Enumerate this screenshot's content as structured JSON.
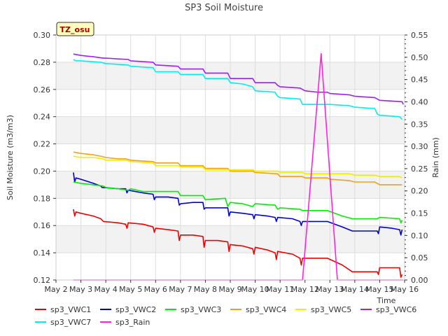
{
  "chart_data": {
    "type": "line",
    "title": "SP3 Soil Moisture",
    "xlabel": "Time",
    "ylabel": "Soil Moisture (m3/m3)",
    "y2label": "Rain (mm)",
    "annotation": "TZ_osu",
    "xlim": [
      2,
      16
    ],
    "ylim": [
      0.12,
      0.3
    ],
    "y2lim": [
      0.0,
      0.55
    ],
    "x_tick_labels": [
      "May 2",
      "May 3",
      "May 4",
      "May 5",
      "May 6",
      "May 7",
      "May 8",
      "May 9",
      "May 10",
      "May 11",
      "May 12",
      "May 13",
      "May 14",
      "May 15",
      "May 16"
    ],
    "x_tick_values": [
      2,
      3,
      4,
      5,
      6,
      7,
      8,
      9,
      10,
      11,
      12,
      13,
      14,
      15,
      16
    ],
    "y_ticks": [
      "0.12",
      "0.14",
      "0.16",
      "0.18",
      "0.20",
      "0.22",
      "0.24",
      "0.26",
      "0.28",
      "0.30"
    ],
    "y_tick_values": [
      0.12,
      0.14,
      0.16,
      0.18,
      0.2,
      0.22,
      0.24,
      0.26,
      0.28,
      0.3
    ],
    "y2_ticks": [
      "0.00",
      "0.05",
      "0.10",
      "0.15",
      "0.20",
      "0.25",
      "0.30",
      "0.35",
      "0.40",
      "0.45",
      "0.50",
      "0.55"
    ],
    "y2_tick_values": [
      0.0,
      0.05,
      0.1,
      0.15,
      0.2,
      0.25,
      0.3,
      0.35,
      0.4,
      0.45,
      0.5,
      0.55
    ],
    "legend_position": "bottom",
    "series": [
      {
        "name": "sp3_VWC1",
        "color": "#ee0000",
        "axis": "left",
        "x": [
          2.7,
          2.75,
          2.8,
          3.0,
          3.5,
          3.8,
          3.85,
          3.9,
          4.5,
          4.8,
          4.85,
          4.9,
          5.5,
          5.9,
          5.95,
          6.0,
          6.5,
          6.9,
          6.95,
          7.0,
          7.5,
          7.9,
          7.95,
          8.0,
          8.5,
          8.9,
          8.95,
          9.0,
          9.5,
          9.9,
          9.95,
          10.0,
          10.5,
          10.8,
          10.85,
          10.9,
          11.5,
          11.8,
          11.85,
          11.9,
          12.5,
          12.9,
          13.5,
          13.9,
          14.5,
          14.9,
          14.95,
          15.0,
          15.5,
          15.8,
          15.85,
          15.9
        ],
        "y": [
          0.172,
          0.167,
          0.17,
          0.169,
          0.167,
          0.165,
          0.164,
          0.163,
          0.162,
          0.161,
          0.158,
          0.162,
          0.161,
          0.159,
          0.155,
          0.158,
          0.157,
          0.156,
          0.149,
          0.153,
          0.153,
          0.152,
          0.144,
          0.149,
          0.149,
          0.148,
          0.141,
          0.146,
          0.145,
          0.143,
          0.139,
          0.144,
          0.142,
          0.14,
          0.135,
          0.141,
          0.139,
          0.136,
          0.131,
          0.136,
          0.136,
          0.136,
          0.131,
          0.126,
          0.126,
          0.126,
          0.124,
          0.129,
          0.129,
          0.129,
          0.122,
          0.124
        ]
      },
      {
        "name": "sp3_VWC2",
        "color": "#0000dd",
        "axis": "left",
        "x": [
          2.7,
          2.75,
          2.8,
          3.0,
          3.5,
          3.8,
          3.85,
          3.9,
          4.5,
          4.8,
          4.85,
          4.9,
          5.5,
          5.9,
          5.95,
          6.0,
          6.5,
          6.9,
          6.95,
          7.0,
          7.5,
          7.9,
          7.95,
          8.0,
          8.5,
          8.9,
          8.95,
          9.0,
          9.5,
          9.9,
          9.95,
          10.0,
          10.5,
          10.8,
          10.85,
          10.9,
          11.5,
          11.8,
          11.85,
          11.9,
          12.5,
          12.9,
          13.5,
          13.9,
          14.5,
          14.9,
          14.95,
          15.0,
          15.5,
          15.8,
          15.85,
          15.9
        ],
        "y": [
          0.199,
          0.192,
          0.195,
          0.194,
          0.191,
          0.189,
          0.188,
          0.188,
          0.187,
          0.187,
          0.184,
          0.186,
          0.184,
          0.183,
          0.179,
          0.181,
          0.181,
          0.18,
          0.175,
          0.176,
          0.177,
          0.177,
          0.172,
          0.173,
          0.173,
          0.173,
          0.167,
          0.17,
          0.169,
          0.168,
          0.165,
          0.168,
          0.167,
          0.166,
          0.163,
          0.166,
          0.165,
          0.163,
          0.16,
          0.163,
          0.163,
          0.163,
          0.159,
          0.156,
          0.156,
          0.156,
          0.154,
          0.159,
          0.158,
          0.157,
          0.153,
          0.157
        ]
      },
      {
        "name": "sp3_VWC3",
        "color": "#00ee00",
        "axis": "left",
        "x": [
          2.7,
          3.0,
          3.5,
          3.9,
          4.0,
          4.5,
          4.9,
          5.0,
          5.5,
          5.9,
          6.0,
          6.9,
          7.0,
          7.9,
          8.0,
          8.8,
          8.9,
          9.0,
          9.5,
          9.9,
          10.0,
          10.8,
          10.9,
          11.0,
          11.8,
          11.9,
          12.9,
          13.5,
          13.9,
          14.5,
          14.9,
          15.0,
          15.8,
          15.85,
          15.9
        ],
        "y": [
          0.192,
          0.191,
          0.19,
          0.189,
          0.188,
          0.187,
          0.186,
          0.187,
          0.185,
          0.185,
          0.185,
          0.185,
          0.182,
          0.182,
          0.179,
          0.18,
          0.174,
          0.177,
          0.176,
          0.174,
          0.176,
          0.175,
          0.172,
          0.173,
          0.172,
          0.171,
          0.171,
          0.167,
          0.165,
          0.165,
          0.165,
          0.166,
          0.165,
          0.162,
          0.164
        ]
      },
      {
        "name": "sp3_VWC4",
        "color": "#f0a020",
        "axis": "left",
        "x": [
          2.7,
          3.0,
          3.5,
          3.8,
          4.0,
          4.5,
          4.8,
          5.0,
          5.9,
          6.0,
          6.9,
          7.0,
          7.9,
          8.0,
          8.9,
          9.0,
          9.9,
          10.0,
          10.9,
          11.0,
          11.9,
          12.0,
          12.9,
          13.0,
          13.8,
          14.0,
          14.8,
          15.0,
          15.9
        ],
        "y": [
          0.214,
          0.213,
          0.212,
          0.211,
          0.21,
          0.209,
          0.209,
          0.208,
          0.207,
          0.206,
          0.206,
          0.204,
          0.204,
          0.202,
          0.202,
          0.2,
          0.2,
          0.199,
          0.198,
          0.196,
          0.196,
          0.195,
          0.195,
          0.194,
          0.193,
          0.192,
          0.192,
          0.19,
          0.19
        ]
      },
      {
        "name": "sp3_VWC5",
        "color": "#eeee00",
        "axis": "left",
        "x": [
          2.7,
          3.0,
          3.5,
          3.9,
          4.0,
          4.8,
          5.0,
          5.9,
          6.0,
          6.9,
          7.0,
          7.9,
          8.0,
          8.9,
          9.0,
          9.9,
          10.0,
          10.9,
          11.0,
          11.9,
          12.0,
          12.9,
          13.0,
          13.8,
          14.0,
          14.8,
          15.0,
          15.8,
          15.9
        ],
        "y": [
          0.211,
          0.21,
          0.21,
          0.209,
          0.208,
          0.208,
          0.207,
          0.206,
          0.204,
          0.204,
          0.203,
          0.203,
          0.201,
          0.201,
          0.201,
          0.201,
          0.2,
          0.2,
          0.199,
          0.199,
          0.198,
          0.198,
          0.198,
          0.198,
          0.197,
          0.197,
          0.196,
          0.196,
          0.195
        ]
      },
      {
        "name": "sp3_VWC6",
        "color": "#a020ee",
        "axis": "left",
        "x": [
          2.7,
          3.0,
          3.5,
          3.9,
          4.0,
          4.9,
          5.0,
          5.9,
          6.0,
          6.9,
          7.0,
          7.9,
          8.0,
          8.9,
          9.0,
          9.9,
          10.0,
          10.8,
          10.9,
          11.0,
          11.8,
          11.9,
          12.0,
          12.5,
          12.9,
          13.0,
          13.8,
          14.0,
          14.8,
          15.0,
          15.9,
          15.95
        ],
        "y": [
          0.286,
          0.285,
          0.284,
          0.283,
          0.283,
          0.282,
          0.281,
          0.28,
          0.278,
          0.277,
          0.275,
          0.275,
          0.272,
          0.272,
          0.268,
          0.268,
          0.265,
          0.265,
          0.263,
          0.262,
          0.261,
          0.26,
          0.259,
          0.258,
          0.258,
          0.257,
          0.256,
          0.255,
          0.254,
          0.252,
          0.251,
          0.249
        ]
      },
      {
        "name": "sp3_VWC7",
        "color": "#00eeee",
        "axis": "left",
        "x": [
          2.7,
          2.8,
          3.0,
          3.8,
          4.0,
          4.9,
          5.0,
          5.9,
          6.0,
          6.9,
          7.0,
          7.9,
          8.0,
          8.9,
          9.0,
          9.5,
          9.9,
          10.0,
          10.8,
          10.9,
          11.0,
          11.8,
          11.9,
          12.0,
          12.9,
          13.0,
          13.8,
          14.0,
          14.8,
          14.9,
          15.0,
          15.8,
          15.9
        ],
        "y": [
          0.282,
          0.281,
          0.281,
          0.28,
          0.279,
          0.278,
          0.277,
          0.276,
          0.273,
          0.273,
          0.271,
          0.271,
          0.268,
          0.268,
          0.265,
          0.264,
          0.262,
          0.259,
          0.258,
          0.255,
          0.254,
          0.253,
          0.249,
          0.249,
          0.249,
          0.249,
          0.248,
          0.247,
          0.246,
          0.242,
          0.241,
          0.24,
          0.238
        ]
      },
      {
        "name": "sp3_Rain",
        "color": "#ff22dd",
        "axis": "right",
        "x": [
          2.7,
          11.9,
          12.65,
          13.3,
          15.95
        ],
        "y": [
          0.0,
          0.0,
          0.508,
          0.0,
          0.0
        ]
      }
    ]
  }
}
